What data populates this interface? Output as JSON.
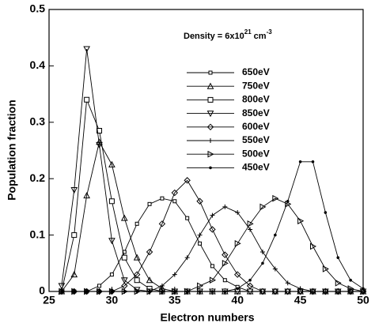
{
  "chart_data": {
    "type": "line",
    "x_label": "Electron numbers",
    "y_label": "Population fraction",
    "annotation": {
      "text": "Density = 6x10",
      "exponent": "21",
      "unit": "cm",
      "unit_exponent": "-3"
    },
    "x": [
      26,
      27,
      28,
      29,
      30,
      31,
      32,
      33,
      34,
      35,
      36,
      37,
      38,
      39,
      40,
      41,
      42,
      43,
      44,
      45,
      46,
      47,
      48,
      49,
      50
    ],
    "xlim": [
      25,
      50
    ],
    "xticks": [
      25,
      30,
      35,
      40,
      45,
      50
    ],
    "ylim": [
      0,
      0.5
    ],
    "yticks": [
      0,
      0.1,
      0.2,
      0.3,
      0.4,
      0.5
    ],
    "legend": "center",
    "series": [
      {
        "name": "650eV",
        "color": "#000000",
        "marker": "small-square",
        "values": [
          0,
          0,
          0,
          0.01,
          0.03,
          0.07,
          0.12,
          0.155,
          0.165,
          0.16,
          0.13,
          0.085,
          0.045,
          0.02,
          0.008,
          0,
          0,
          0,
          0,
          0,
          0,
          0,
          0,
          0,
          0
        ]
      },
      {
        "name": "750eV",
        "color": "#000000",
        "marker": "triangle-up",
        "values": [
          0,
          0.03,
          0.17,
          0.265,
          0.225,
          0.13,
          0.06,
          0.02,
          0.005,
          0,
          0,
          0,
          0,
          0,
          0,
          0,
          0,
          0,
          0,
          0,
          0,
          0,
          0,
          0,
          0
        ]
      },
      {
        "name": "800eV",
        "color": "#000000",
        "marker": "square",
        "values": [
          0,
          0.1,
          0.34,
          0.285,
          0.16,
          0.06,
          0.02,
          0.005,
          0,
          0,
          0,
          0,
          0,
          0,
          0,
          0,
          0,
          0,
          0,
          0,
          0,
          0,
          0,
          0,
          0
        ]
      },
      {
        "name": "850eV",
        "color": "#000000",
        "marker": "triangle-down",
        "values": [
          0.01,
          0.18,
          0.43,
          0.26,
          0.09,
          0.02,
          0.003,
          0,
          0,
          0,
          0,
          0,
          0,
          0,
          0,
          0,
          0,
          0,
          0,
          0,
          0,
          0,
          0,
          0,
          0
        ]
      },
      {
        "name": "600eV",
        "color": "#000000",
        "marker": "diamond",
        "values": [
          0,
          0,
          0,
          0,
          0,
          0.01,
          0.03,
          0.07,
          0.12,
          0.175,
          0.197,
          0.16,
          0.11,
          0.065,
          0.03,
          0.01,
          0,
          0,
          0,
          0,
          0,
          0,
          0,
          0,
          0
        ]
      },
      {
        "name": "550eV",
        "color": "#000000",
        "marker": "plus",
        "values": [
          0,
          0,
          0,
          0,
          0,
          0,
          0,
          0,
          0.01,
          0.03,
          0.06,
          0.1,
          0.135,
          0.15,
          0.14,
          0.11,
          0.07,
          0.04,
          0.015,
          0.005,
          0,
          0,
          0,
          0,
          0
        ]
      },
      {
        "name": "500eV",
        "color": "#000000",
        "marker": "triangle-right",
        "values": [
          0,
          0,
          0,
          0,
          0,
          0,
          0,
          0,
          0,
          0,
          0,
          0.01,
          0.02,
          0.05,
          0.085,
          0.12,
          0.15,
          0.165,
          0.155,
          0.125,
          0.08,
          0.04,
          0.015,
          0.005,
          0
        ]
      },
      {
        "name": "450eV",
        "color": "#000000",
        "marker": "dot",
        "values": [
          0,
          0,
          0,
          0,
          0,
          0,
          0,
          0,
          0,
          0,
          0,
          0,
          0,
          0,
          0.005,
          0.02,
          0.05,
          0.1,
          0.16,
          0.23,
          0.23,
          0.14,
          0.06,
          0.02,
          0.005
        ]
      }
    ]
  }
}
